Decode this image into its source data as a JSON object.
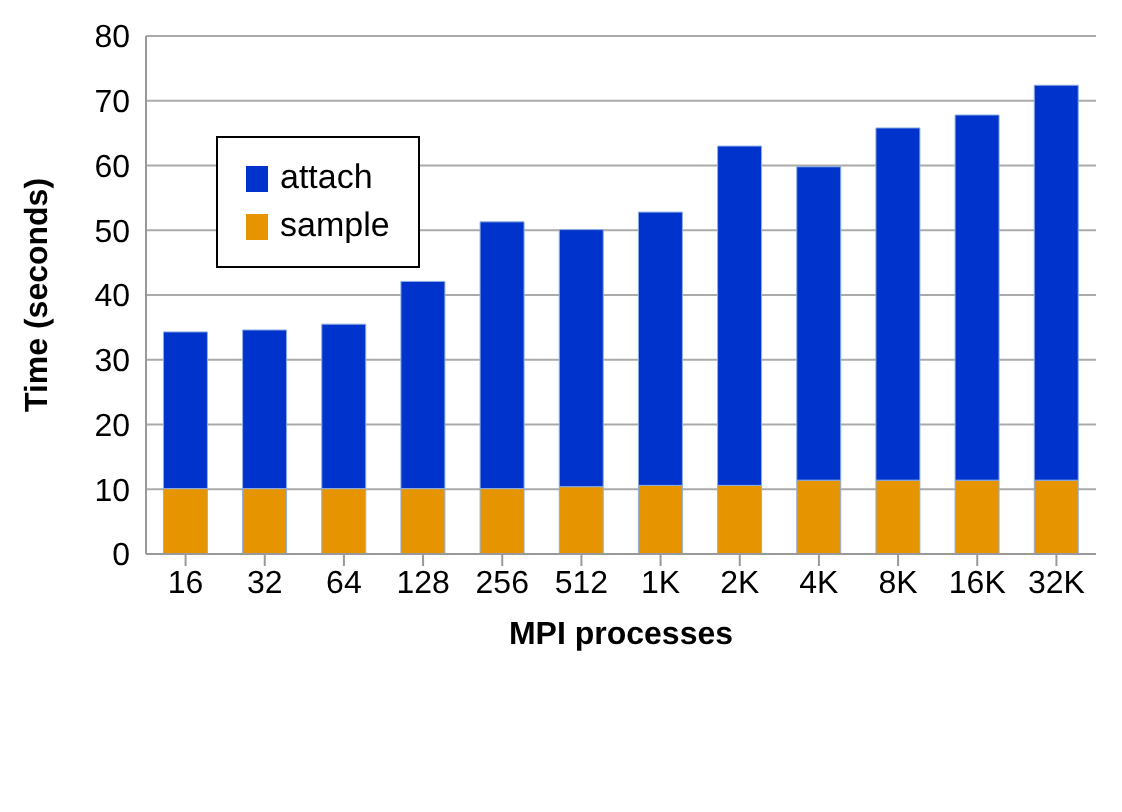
{
  "chart_data": {
    "type": "bar",
    "stacked": true,
    "xlabel": "MPI processes",
    "ylabel": "Time (seconds)",
    "categories": [
      "16",
      "32",
      "64",
      "128",
      "256",
      "512",
      "1K",
      "2K",
      "4K",
      "8K",
      "16K",
      "32K"
    ],
    "series": [
      {
        "name": "sample",
        "color": "#e69500",
        "values": [
          10.1,
          10.1,
          10.1,
          10.1,
          10.1,
          10.4,
          10.6,
          10.6,
          11.4,
          11.4,
          11.4,
          11.4
        ]
      },
      {
        "name": "attach",
        "color": "#0033cc",
        "values": [
          24.2,
          24.5,
          25.4,
          32.0,
          41.2,
          39.7,
          42.2,
          52.4,
          48.4,
          54.4,
          56.4,
          61.0
        ]
      }
    ],
    "ylim": [
      0,
      80
    ],
    "yticks": [
      0,
      10,
      20,
      30,
      40,
      50,
      60,
      70,
      80
    ],
    "grid": "y",
    "legend": "top left"
  }
}
